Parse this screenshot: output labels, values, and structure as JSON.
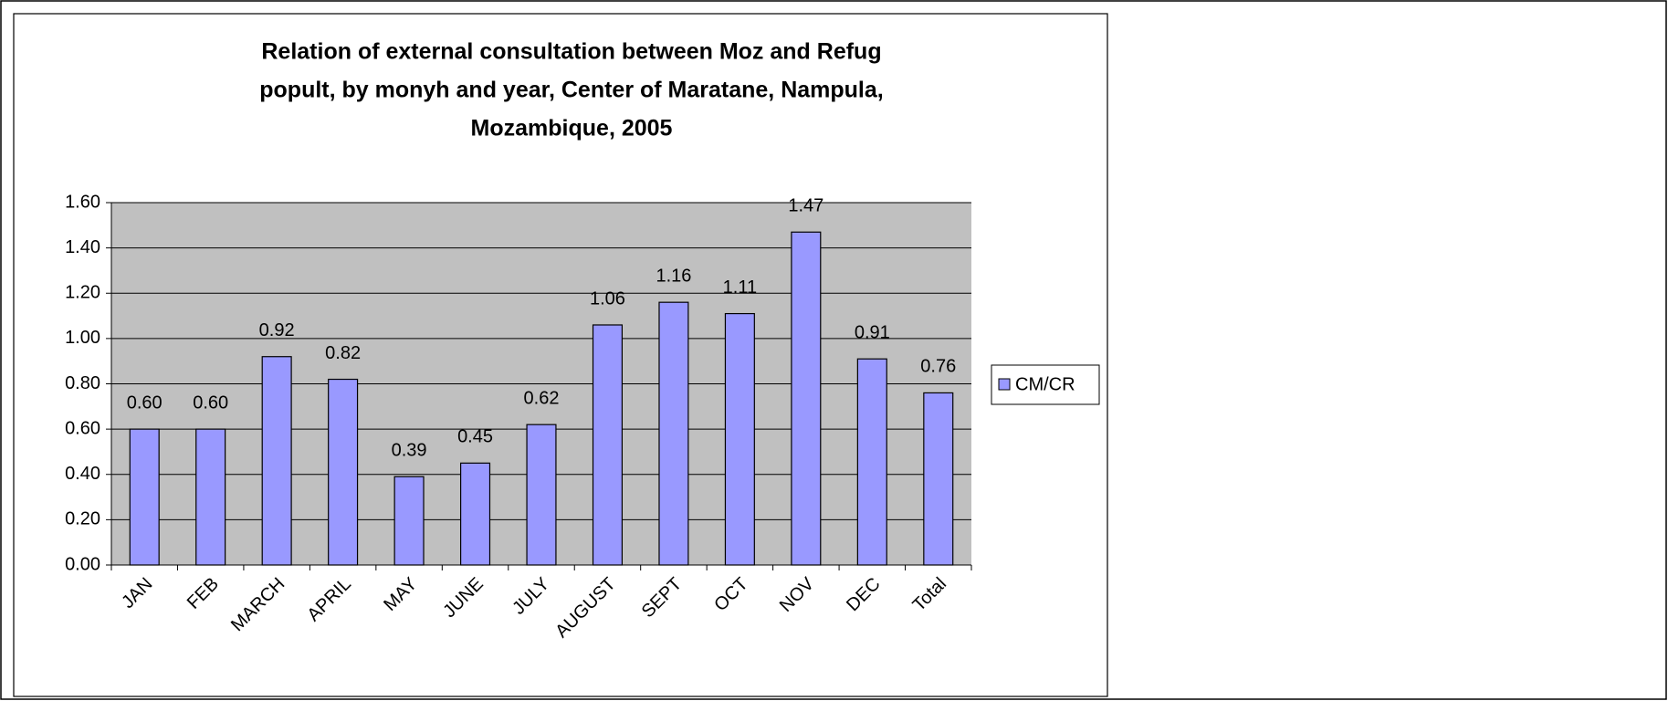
{
  "chart_data": {
    "type": "bar",
    "title": [
      "Relation of external consultation between Moz and Refug",
      "popult, by monyh and year, Center of Maratane, Nampula,",
      "Mozambique, 2005"
    ],
    "categories": [
      "JAN",
      "FEB",
      "MARCH",
      "APRIL",
      "MAY",
      "JUNE",
      "JULY",
      "AUGUST",
      "SEPT",
      "OCT",
      "NOV",
      "DEC",
      "Total"
    ],
    "series": [
      {
        "name": "CM/CR",
        "color": "#9999ff",
        "values": [
          0.6,
          0.6,
          0.92,
          0.82,
          0.39,
          0.45,
          0.62,
          1.06,
          1.16,
          1.11,
          1.47,
          0.91,
          0.76
        ],
        "value_labels": [
          "0.60",
          "0.60",
          "0.92",
          "0.82",
          "0.39",
          "0.45",
          "0.62",
          "1.06",
          "1.16",
          "1.11",
          "1.47",
          "0.91",
          "0.76"
        ]
      }
    ],
    "ylim": [
      0,
      1.6
    ],
    "yticks": [
      {
        "value": 0,
        "label": "0.00"
      },
      {
        "value": 0.2,
        "label": "0.20"
      },
      {
        "value": 0.4,
        "label": "0.40"
      },
      {
        "value": 0.6,
        "label": "0.60"
      },
      {
        "value": 0.8,
        "label": "0.80"
      },
      {
        "value": 1,
        "label": "1.00"
      },
      {
        "value": 1.2,
        "label": "1.20"
      },
      {
        "value": 1.4,
        "label": "1.40"
      },
      {
        "value": 1.6,
        "label": "1.60"
      }
    ],
    "grid": true,
    "legend": "right"
  }
}
